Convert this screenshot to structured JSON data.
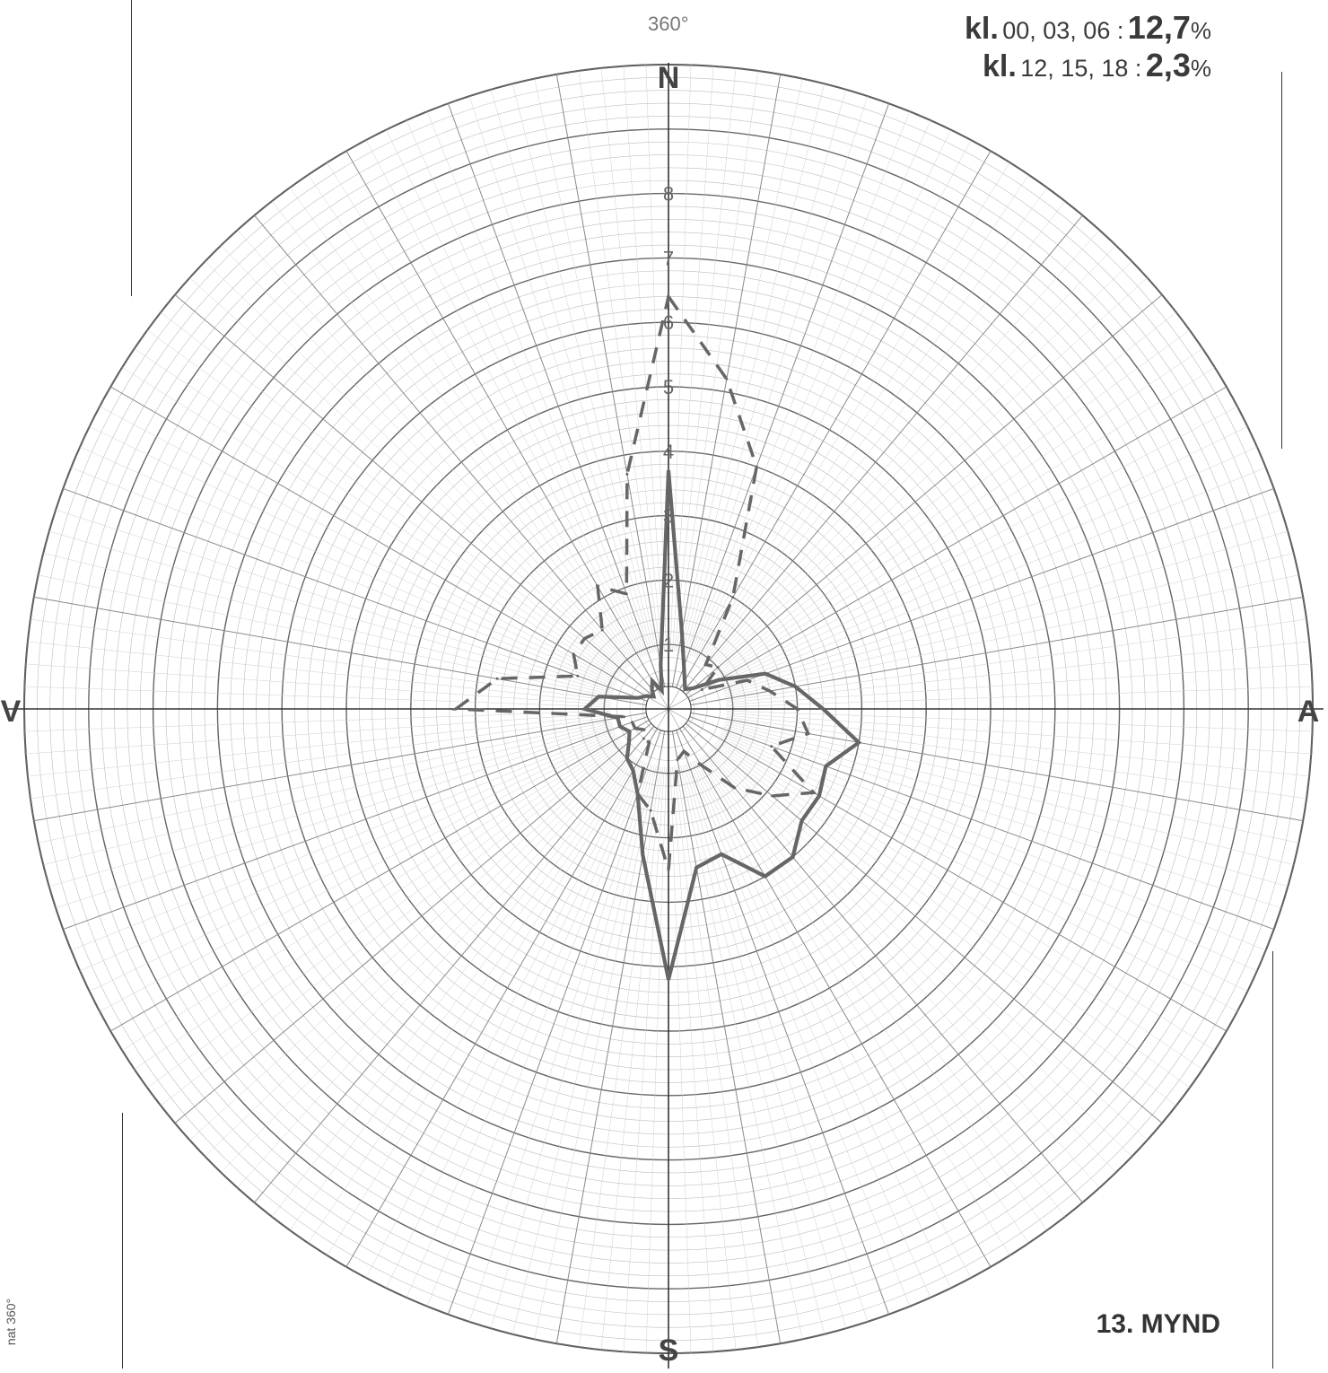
{
  "header": {
    "top_label": "360°"
  },
  "legend": {
    "rows": [
      {
        "prefix": "kl.",
        "hours": "00, 03, 06 :",
        "percent": "12,7",
        "unit": "%"
      },
      {
        "prefix": "kl.",
        "hours": "12, 15, 18 :",
        "percent": "2,3",
        "unit": "%"
      }
    ]
  },
  "figure_label": "13. MYND",
  "side_stamp": "nat 360°",
  "chart_data": {
    "type": "radar",
    "title": "",
    "directions": {
      "north": "N",
      "east": "A",
      "south": "S",
      "west": "V"
    },
    "radial_axis": {
      "ticks": [
        "1",
        "2",
        "3",
        "4",
        "5",
        "6",
        "7",
        "8"
      ],
      "range": [
        0,
        10
      ],
      "grid": true
    },
    "angle_step_degrees": 10,
    "series": [
      {
        "style": "solid",
        "values": [
          3.7,
          1.2,
          0.7,
          0.5,
          0.4,
          0.5,
          0.9,
          1.6,
          2.0,
          2.4,
          3.0,
          2.6,
          2.7,
          2.7,
          3.0,
          3.0,
          2.4,
          2.5,
          4.2,
          2.3,
          1.4,
          1.1,
          1.0,
          0.8,
          0.7,
          0.8,
          0.8,
          1.3,
          1.1,
          0.5,
          0.4,
          0.3,
          0.4,
          0.5,
          0.3,
          0.7
        ],
        "notes": "approximate values for 36 directions from 0° clockwise"
      },
      {
        "style": "dashed",
        "values": [
          6.4,
          5.2,
          4.0,
          2.0,
          0.9,
          1.0,
          0.6,
          1.3,
          1.6,
          2.0,
          2.2,
          1.7,
          2.6,
          2.1,
          1.6,
          1.0,
          0.7,
          0.8,
          2.5,
          1.6,
          1.4,
          0.6,
          0.6,
          0.5,
          0.6,
          0.6,
          0.7,
          3.3,
          2.7,
          1.5,
          1.7,
          1.7,
          1.6,
          2.2,
          1.9,
          3.7
        ],
        "notes": "approximate values for 36 directions from 0° clockwise"
      }
    ]
  }
}
